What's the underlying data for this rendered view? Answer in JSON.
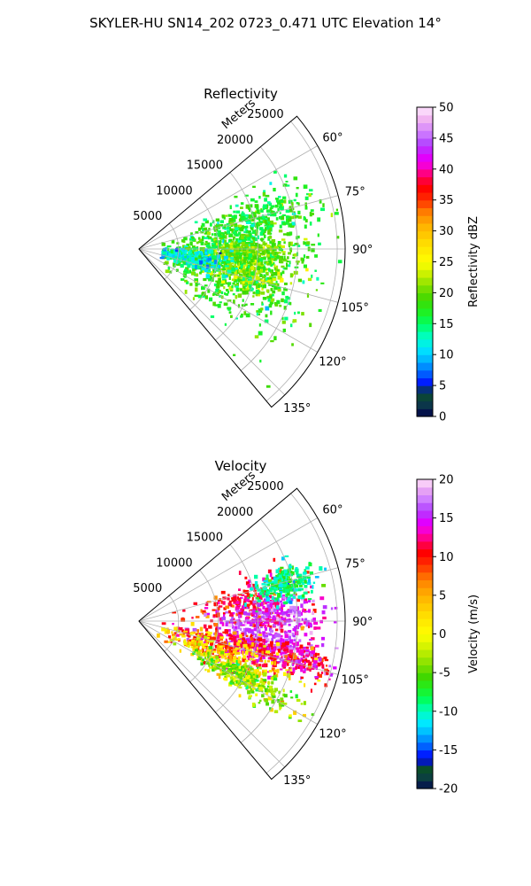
{
  "figure": {
    "title": "SKYLER-HU  SN14_202  0723_0.471 UTC Elevation 14°"
  },
  "chart_data": [
    {
      "type": "heatmap",
      "projection": "polar-sector",
      "title": "Reflectivity",
      "radial_axis_label": "Meters",
      "radial_ticks": [
        5000,
        10000,
        15000,
        20000,
        25000
      ],
      "radial_tick_labels": [
        "5000",
        "10000",
        "15000",
        "20000",
        "25000"
      ],
      "radial_range": [
        0,
        26000
      ],
      "azimuth_range_deg": [
        50,
        140
      ],
      "azimuth_ticks_deg": [
        60,
        75,
        90,
        105,
        120,
        135
      ],
      "azimuth_tick_labels": [
        "60°",
        "75°",
        "90°",
        "105°",
        "120°",
        "135°"
      ],
      "grid": true,
      "colorbar": {
        "label": "Reflectivity dBZ",
        "range": [
          0,
          50
        ],
        "ticks": [
          0,
          5,
          10,
          15,
          20,
          25,
          30,
          35,
          40,
          45,
          50
        ],
        "tick_labels": [
          "0",
          "5",
          "10",
          "15",
          "20",
          "25",
          "30",
          "35",
          "40",
          "45",
          "50"
        ]
      },
      "echo_regions": [
        {
          "az": 98,
          "r": 12000,
          "spread_az": 8,
          "spread_r": 4500,
          "value": 17
        },
        {
          "az": 103,
          "r": 13500,
          "spread_az": 5,
          "spread_r": 3000,
          "value": 22
        },
        {
          "az": 85,
          "r": 13000,
          "spread_az": 7,
          "spread_r": 4500,
          "value": 18
        },
        {
          "az": 112,
          "r": 13000,
          "spread_az": 10,
          "spread_r": 5500,
          "value": 18
        },
        {
          "az": 75,
          "r": 16000,
          "spread_az": 5,
          "spread_r": 4000,
          "value": 17
        },
        {
          "az": 92,
          "r": 14500,
          "spread_az": 3,
          "spread_r": 2500,
          "value": 20
        },
        {
          "az": 100,
          "r": 6500,
          "spread_az": 5,
          "spread_r": 2500,
          "value": 12
        }
      ]
    },
    {
      "type": "heatmap",
      "projection": "polar-sector",
      "title": "Velocity",
      "radial_axis_label": "Meters",
      "radial_ticks": [
        5000,
        10000,
        15000,
        20000,
        25000
      ],
      "radial_tick_labels": [
        "5000",
        "10000",
        "15000",
        "20000",
        "25000"
      ],
      "radial_range": [
        0,
        26000
      ],
      "azimuth_range_deg": [
        50,
        140
      ],
      "azimuth_ticks_deg": [
        60,
        75,
        90,
        105,
        120,
        135
      ],
      "azimuth_tick_labels": [
        "60°",
        "75°",
        "90°",
        "105°",
        "120°",
        "135°"
      ],
      "grid": true,
      "colorbar": {
        "label": "Velocity (m/s)",
        "range": [
          -20,
          20
        ],
        "ticks": [
          -20,
          -15,
          -10,
          -5,
          0,
          5,
          10,
          15,
          20
        ],
        "tick_labels": [
          "-20",
          "-15",
          "-10",
          "-5",
          "0",
          "5",
          "10",
          "15",
          "20"
        ]
      },
      "echo_regions": [
        {
          "az": 82,
          "r": 14000,
          "spread_az": 6,
          "spread_r": 3500,
          "value": 11
        },
        {
          "az": 88,
          "r": 17000,
          "spread_az": 4,
          "spread_r": 3000,
          "value": 15
        },
        {
          "az": 100,
          "r": 16000,
          "spread_az": 4,
          "spread_r": 3500,
          "value": 16
        },
        {
          "az": 104,
          "r": 20000,
          "spread_az": 3,
          "spread_r": 4000,
          "value": 12
        },
        {
          "az": 108,
          "r": 11000,
          "spread_az": 6,
          "spread_r": 3500,
          "value": 10
        },
        {
          "az": 112,
          "r": 12000,
          "spread_az": 6,
          "spread_r": 5000,
          "value": 2
        },
        {
          "az": 118,
          "r": 15000,
          "spread_az": 3,
          "spread_r": 3500,
          "value": -4
        },
        {
          "az": 76,
          "r": 19000,
          "spread_az": 3,
          "spread_r": 2000,
          "value": -9
        }
      ]
    }
  ]
}
